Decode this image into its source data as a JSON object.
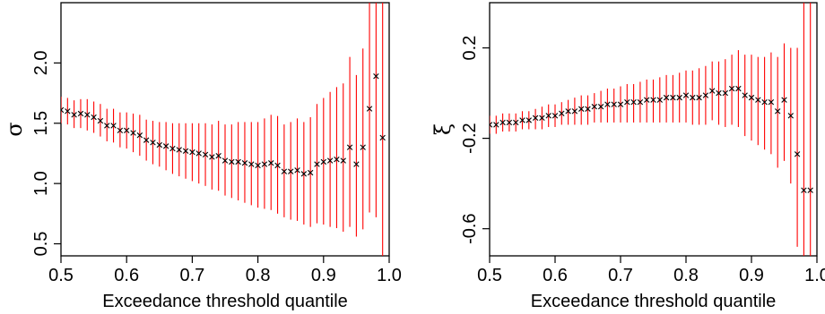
{
  "chart_data": [
    {
      "type": "scatter",
      "title": "",
      "xlabel": "Exceedance threshold quantile",
      "ylabel": "σ",
      "xlim": [
        0.5,
        1.0
      ],
      "ylim": [
        0.4,
        2.5
      ],
      "xticks": [
        "0.5",
        "0.6",
        "0.7",
        "0.8",
        "0.9",
        "1.0"
      ],
      "yticks": [
        "0.5",
        "1.0",
        "1.5",
        "2.0"
      ],
      "grid": false,
      "colors": {
        "point": "#000000",
        "interval": "#ff0000"
      },
      "series": [
        {
          "x": [
            0.5,
            0.51,
            0.52,
            0.53,
            0.54,
            0.55,
            0.56,
            0.57,
            0.58,
            0.59,
            0.6,
            0.61,
            0.62,
            0.63,
            0.64,
            0.65,
            0.66,
            0.67,
            0.68,
            0.69,
            0.7,
            0.71,
            0.72,
            0.73,
            0.74,
            0.75,
            0.76,
            0.77,
            0.78,
            0.79,
            0.8,
            0.81,
            0.82,
            0.83,
            0.84,
            0.85,
            0.86,
            0.87,
            0.88,
            0.89,
            0.9,
            0.91,
            0.92,
            0.93,
            0.94,
            0.95,
            0.96,
            0.97,
            0.98,
            0.99
          ],
          "y": [
            1.61,
            1.6,
            1.57,
            1.58,
            1.57,
            1.55,
            1.52,
            1.48,
            1.48,
            1.44,
            1.44,
            1.42,
            1.4,
            1.36,
            1.34,
            1.32,
            1.31,
            1.29,
            1.28,
            1.27,
            1.26,
            1.25,
            1.24,
            1.22,
            1.23,
            1.19,
            1.18,
            1.18,
            1.17,
            1.16,
            1.15,
            1.16,
            1.17,
            1.15,
            1.1,
            1.1,
            1.11,
            1.08,
            1.09,
            1.16,
            1.18,
            1.19,
            1.2,
            1.19,
            1.3,
            1.16,
            1.3,
            1.62,
            1.89,
            1.38
          ],
          "lower": [
            1.5,
            1.49,
            1.46,
            1.46,
            1.44,
            1.42,
            1.39,
            1.35,
            1.34,
            1.3,
            1.29,
            1.26,
            1.23,
            1.19,
            1.16,
            1.14,
            1.11,
            1.08,
            1.06,
            1.04,
            1.02,
            1.0,
            0.98,
            0.95,
            0.94,
            0.9,
            0.88,
            0.86,
            0.84,
            0.82,
            0.8,
            0.79,
            0.78,
            0.75,
            0.72,
            0.7,
            0.69,
            0.66,
            0.64,
            0.67,
            0.66,
            0.64,
            0.63,
            0.6,
            0.64,
            0.56,
            0.62,
            0.76,
            0.72,
            0.4
          ],
          "upper": [
            1.72,
            1.71,
            1.69,
            1.7,
            1.7,
            1.68,
            1.66,
            1.62,
            1.62,
            1.59,
            1.59,
            1.58,
            1.57,
            1.53,
            1.52,
            1.51,
            1.51,
            1.5,
            1.5,
            1.5,
            1.5,
            1.5,
            1.5,
            1.49,
            1.52,
            1.49,
            1.49,
            1.51,
            1.51,
            1.51,
            1.51,
            1.54,
            1.57,
            1.56,
            1.49,
            1.51,
            1.54,
            1.51,
            1.55,
            1.66,
            1.71,
            1.76,
            1.8,
            1.83,
            2.05,
            1.9,
            2.12,
            2.5,
            2.5,
            2.5
          ]
        }
      ]
    },
    {
      "type": "scatter",
      "title": "",
      "xlabel": "Exceedance threshold quantile",
      "ylabel": "ξ",
      "xlim": [
        0.5,
        1.0
      ],
      "ylim": [
        -0.72,
        0.4
      ],
      "xticks": [
        "0.5",
        "0.6",
        "0.7",
        "0.8",
        "0.9",
        "1.0"
      ],
      "yticks": [
        "-0.6",
        "-0.2",
        "0.2"
      ],
      "grid": false,
      "colors": {
        "point": "#000000",
        "interval": "#ff0000"
      },
      "series": [
        {
          "x": [
            0.5,
            0.51,
            0.52,
            0.53,
            0.54,
            0.55,
            0.56,
            0.57,
            0.58,
            0.59,
            0.6,
            0.61,
            0.62,
            0.63,
            0.64,
            0.65,
            0.66,
            0.67,
            0.68,
            0.69,
            0.7,
            0.71,
            0.72,
            0.73,
            0.74,
            0.75,
            0.76,
            0.77,
            0.78,
            0.79,
            0.8,
            0.81,
            0.82,
            0.83,
            0.84,
            0.85,
            0.86,
            0.87,
            0.88,
            0.89,
            0.9,
            0.91,
            0.92,
            0.93,
            0.94,
            0.95,
            0.96,
            0.97,
            0.98,
            0.99
          ],
          "y": [
            -0.14,
            -0.14,
            -0.13,
            -0.13,
            -0.13,
            -0.12,
            -0.12,
            -0.11,
            -0.11,
            -0.1,
            -0.1,
            -0.09,
            -0.08,
            -0.08,
            -0.07,
            -0.07,
            -0.06,
            -0.06,
            -0.05,
            -0.05,
            -0.05,
            -0.04,
            -0.04,
            -0.04,
            -0.03,
            -0.03,
            -0.03,
            -0.02,
            -0.02,
            -0.02,
            -0.01,
            -0.02,
            -0.02,
            -0.01,
            0.01,
            0.0,
            0.0,
            0.02,
            0.02,
            -0.01,
            -0.02,
            -0.03,
            -0.04,
            -0.04,
            -0.08,
            -0.03,
            -0.1,
            -0.27,
            -0.43,
            -0.43
          ],
          "lower": [
            -0.18,
            -0.18,
            -0.17,
            -0.17,
            -0.17,
            -0.16,
            -0.16,
            -0.16,
            -0.16,
            -0.15,
            -0.15,
            -0.14,
            -0.14,
            -0.14,
            -0.14,
            -0.14,
            -0.13,
            -0.13,
            -0.13,
            -0.13,
            -0.13,
            -0.13,
            -0.13,
            -0.13,
            -0.13,
            -0.13,
            -0.13,
            -0.13,
            -0.13,
            -0.13,
            -0.13,
            -0.14,
            -0.14,
            -0.14,
            -0.12,
            -0.14,
            -0.15,
            -0.14,
            -0.15,
            -0.19,
            -0.21,
            -0.23,
            -0.25,
            -0.27,
            -0.33,
            -0.3,
            -0.4,
            -0.68,
            -0.72,
            -0.72
          ],
          "upper": [
            -0.1,
            -0.1,
            -0.09,
            -0.09,
            -0.09,
            -0.08,
            -0.08,
            -0.07,
            -0.06,
            -0.05,
            -0.05,
            -0.04,
            -0.03,
            -0.02,
            -0.01,
            -0.01,
            0.0,
            0.01,
            0.02,
            0.02,
            0.03,
            0.04,
            0.04,
            0.05,
            0.06,
            0.06,
            0.07,
            0.08,
            0.08,
            0.09,
            0.1,
            0.1,
            0.11,
            0.12,
            0.14,
            0.14,
            0.15,
            0.17,
            0.19,
            0.17,
            0.17,
            0.16,
            0.16,
            0.18,
            0.16,
            0.22,
            0.2,
            0.2,
            0.4,
            0.4
          ]
        }
      ]
    }
  ]
}
